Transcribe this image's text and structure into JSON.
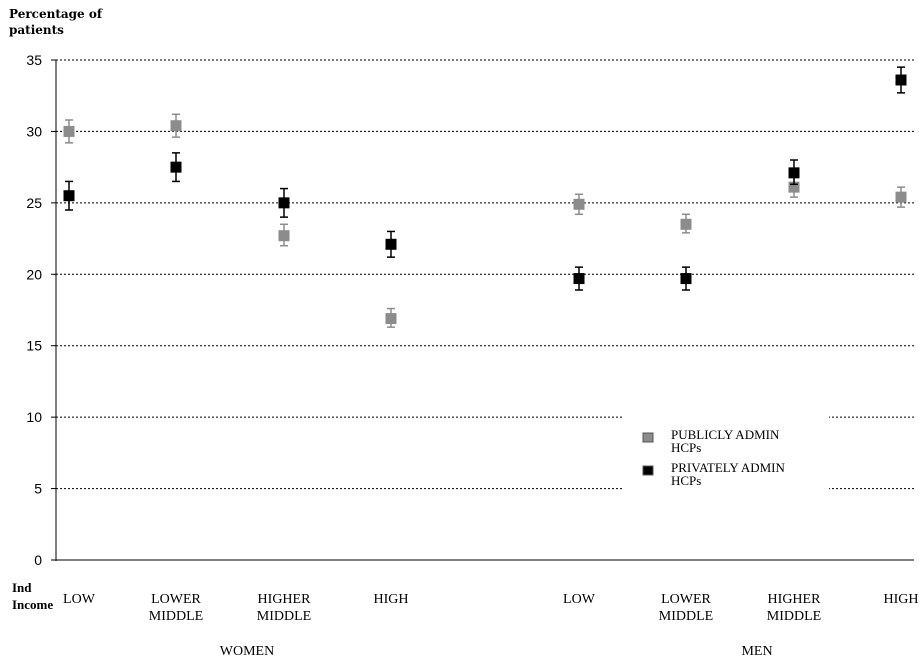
{
  "chart_data": {
    "type": "scatter",
    "ylabel_lines": [
      "Percentage of",
      "patients"
    ],
    "xlabel_lines": [
      "Ind",
      "Income"
    ],
    "ylim": [
      0,
      35
    ],
    "yticks": [
      0,
      5,
      10,
      15,
      20,
      25,
      30,
      35
    ],
    "grid": "horizontal-dashed",
    "legend_position": "lower-right",
    "categories": [
      {
        "lines": [
          "LOW"
        ],
        "group": "WOMEN"
      },
      {
        "lines": [
          "LOWER",
          "MIDDLE"
        ],
        "group": "WOMEN"
      },
      {
        "lines": [
          "HIGHER",
          "MIDDLE"
        ],
        "group": "WOMEN"
      },
      {
        "lines": [
          "HIGH"
        ],
        "group": "WOMEN"
      },
      {
        "lines": [
          "LOW"
        ],
        "group": "MEN"
      },
      {
        "lines": [
          "LOWER",
          "MIDDLE"
        ],
        "group": "MEN"
      },
      {
        "lines": [
          "HIGHER",
          "MIDDLE"
        ],
        "group": "MEN"
      },
      {
        "lines": [
          "HIGH"
        ],
        "group": "MEN"
      }
    ],
    "groups": [
      "WOMEN",
      "MEN"
    ],
    "series": [
      {
        "name_lines": [
          "PUBLICLY ADMIN",
          "HCPs"
        ],
        "color": "#8c8c8c",
        "values": [
          30.0,
          30.4,
          22.7,
          16.9,
          24.9,
          23.5,
          26.1,
          25.4
        ],
        "lower": [
          29.2,
          29.6,
          22.0,
          16.3,
          24.2,
          22.9,
          25.4,
          24.7
        ],
        "upper": [
          30.8,
          31.2,
          23.5,
          17.6,
          25.6,
          24.2,
          26.8,
          26.1
        ]
      },
      {
        "name_lines": [
          "PRIVATELY ADMIN",
          "HCPs"
        ],
        "color": "#000000",
        "values": [
          25.5,
          27.5,
          25.0,
          22.1,
          19.7,
          19.7,
          27.1,
          33.6
        ],
        "lower": [
          24.5,
          26.5,
          24.0,
          21.2,
          18.9,
          18.9,
          26.3,
          32.7
        ],
        "upper": [
          26.5,
          28.5,
          26.0,
          23.0,
          20.5,
          20.5,
          28.0,
          34.5
        ]
      }
    ]
  }
}
